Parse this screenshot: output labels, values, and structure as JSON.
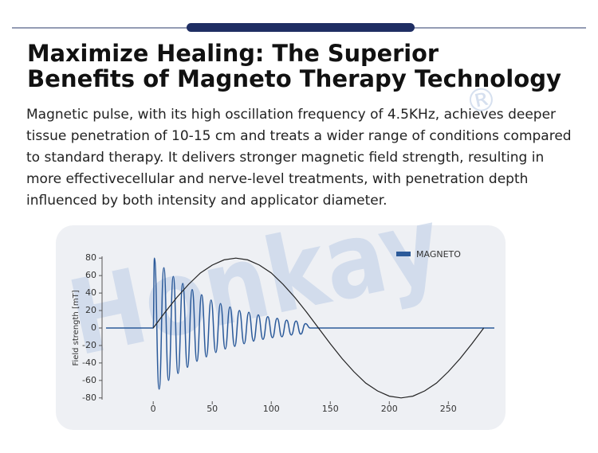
{
  "header": {
    "title_lines": [
      "Maximize Healing: The Superior",
      "Benefits of Magneto Therapy Technology"
    ]
  },
  "paragraph": {
    "lines": [
      "Magnetic pulse, with its high oscillation frequency of 4.5KHz, achieves deeper",
      "tissue penetration of 10-15 cm and treats a wider range of conditions compared",
      "to standard  therapy. It delivers stronger magnetic field strength, resulting in",
      "more effectivecellular and nerve-level treatments, with penetration depth",
      "influenced by both intensity and applicator diameter."
    ]
  },
  "watermark": {
    "text": "Honkay",
    "mark": "®"
  },
  "chart_data": {
    "type": "line",
    "y_label": "Field strength [mT]",
    "xlim": [
      -42,
      289
    ],
    "ylim": [
      -82,
      82
    ],
    "xticks": [
      0,
      50,
      100,
      150,
      200,
      250
    ],
    "yticks": [
      -80,
      -60,
      -40,
      -20,
      0,
      20,
      40,
      60,
      80
    ],
    "legend": "top-right",
    "series": [
      {
        "name": "MAGNETO",
        "color": "#2b5a9a",
        "smooth": true,
        "x": [
          -40,
          0,
          1,
          5,
          9,
          13,
          17,
          21,
          25,
          29,
          33,
          37,
          41,
          45,
          49,
          53,
          57,
          61,
          65,
          69,
          73,
          77,
          81,
          85,
          89,
          93,
          97,
          101,
          105,
          109,
          113,
          117,
          121,
          125,
          129,
          133,
          289
        ],
        "values": [
          0,
          0,
          80,
          -70,
          69,
          -60,
          59,
          -52,
          51,
          -45,
          44,
          -38,
          38,
          -33,
          32,
          -28,
          28,
          -24,
          24,
          -21,
          20,
          -18,
          18,
          -15,
          15,
          -13,
          13,
          -11,
          11,
          -10,
          9,
          -8,
          8,
          -7,
          5,
          0,
          0
        ]
      },
      {
        "color": "#222222",
        "smooth": false,
        "x": [
          0,
          10,
          20,
          30,
          40,
          50,
          60,
          70,
          80,
          90,
          100,
          110,
          120,
          130,
          140,
          150,
          160,
          170,
          180,
          190,
          200,
          210,
          220,
          230,
          240,
          250,
          260,
          270,
          280
        ],
        "values": [
          0,
          18,
          35,
          50,
          63,
          72,
          78,
          80,
          78,
          72,
          63,
          50,
          35,
          18,
          0,
          -18,
          -35,
          -50,
          -63,
          -72,
          -78,
          -80,
          -78,
          -72,
          -63,
          -50,
          -35,
          -18,
          0
        ]
      }
    ]
  }
}
